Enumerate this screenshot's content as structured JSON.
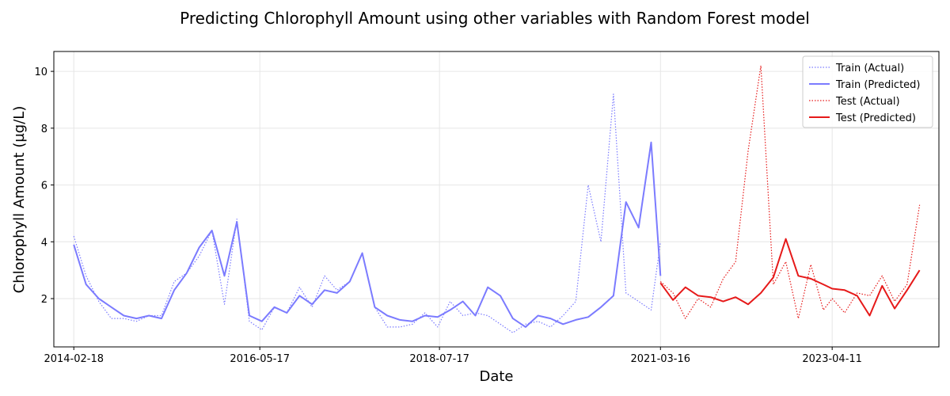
{
  "chart_data": {
    "type": "line",
    "title": "Predicting Chlorophyll Amount using other variables with Random Forest model",
    "xlabel": "Date",
    "ylabel": "Chlorophyll Amount (µg/L)",
    "ylim": [
      0.3,
      10.7
    ],
    "yticks": [
      2,
      4,
      6,
      8,
      10
    ],
    "xlim": [
      "2013-11-22",
      "2024-07-24"
    ],
    "xticks": [
      "2014-02-18",
      "2016-05-17",
      "2018-07-17",
      "2021-03-16",
      "2023-04-11"
    ],
    "grid": true,
    "legend_position": "top-right",
    "series": [
      {
        "name": "Train (Actual)",
        "color": "#7b7bff",
        "style": "dotted",
        "x": [
          "2014-02-18",
          "2014-04-13",
          "2014-06-08",
          "2014-08-02",
          "2014-09-26",
          "2014-11-21",
          "2015-01-15",
          "2015-03-11",
          "2015-05-06",
          "2015-06-30",
          "2015-08-24",
          "2015-10-19",
          "2015-12-13",
          "2016-02-06",
          "2016-04-01",
          "2016-05-26",
          "2016-07-20",
          "2016-09-13",
          "2016-11-08",
          "2017-01-02",
          "2017-02-26",
          "2017-04-22",
          "2017-06-17",
          "2017-08-11",
          "2017-10-05",
          "2017-11-29",
          "2018-01-24",
          "2018-03-20",
          "2018-05-14",
          "2018-07-09",
          "2018-09-02",
          "2018-10-28",
          "2018-12-22",
          "2019-02-15",
          "2019-04-11",
          "2019-06-05",
          "2019-07-31",
          "2019-09-24",
          "2019-11-18",
          "2020-01-12",
          "2020-03-08",
          "2020-05-02",
          "2020-06-27",
          "2020-08-21",
          "2020-10-15",
          "2020-12-10",
          "2021-02-03",
          "2021-03-16"
        ],
        "values": [
          4.2,
          2.8,
          1.9,
          1.3,
          1.3,
          1.2,
          1.4,
          1.4,
          2.6,
          2.9,
          3.5,
          4.4,
          1.8,
          4.8,
          1.2,
          0.9,
          1.7,
          1.5,
          2.4,
          1.7,
          2.8,
          2.3,
          2.6,
          3.6,
          1.7,
          1.0,
          1.0,
          1.1,
          1.5,
          1.0,
          1.9,
          1.4,
          1.5,
          1.4,
          1.1,
          0.8,
          1.1,
          1.2,
          1.0,
          1.4,
          1.9,
          6.0,
          4.0,
          9.2,
          2.2,
          1.9,
          1.6,
          4.0
        ]
      },
      {
        "name": "Train (Predicted)",
        "color": "#7b7bff",
        "style": "solid",
        "x": [
          "2014-02-18",
          "2014-04-13",
          "2014-06-08",
          "2014-08-02",
          "2014-09-26",
          "2014-11-21",
          "2015-01-15",
          "2015-03-11",
          "2015-05-06",
          "2015-06-30",
          "2015-08-24",
          "2015-10-19",
          "2015-12-13",
          "2016-02-06",
          "2016-04-01",
          "2016-05-26",
          "2016-07-20",
          "2016-09-13",
          "2016-11-08",
          "2017-01-02",
          "2017-02-26",
          "2017-04-22",
          "2017-06-17",
          "2017-08-11",
          "2017-10-05",
          "2017-11-29",
          "2018-01-24",
          "2018-03-20",
          "2018-05-14",
          "2018-07-09",
          "2018-09-02",
          "2018-10-28",
          "2018-12-22",
          "2019-02-15",
          "2019-04-11",
          "2019-06-05",
          "2019-07-31",
          "2019-09-24",
          "2019-11-18",
          "2020-01-12",
          "2020-03-08",
          "2020-05-02",
          "2020-06-27",
          "2020-08-21",
          "2020-10-15",
          "2020-12-10",
          "2021-02-03",
          "2021-03-16"
        ],
        "values": [
          3.9,
          2.5,
          2.0,
          1.7,
          1.4,
          1.3,
          1.4,
          1.3,
          2.3,
          2.9,
          3.8,
          4.4,
          2.8,
          4.7,
          1.4,
          1.2,
          1.7,
          1.5,
          2.1,
          1.8,
          2.3,
          2.2,
          2.6,
          3.6,
          1.7,
          1.4,
          1.25,
          1.2,
          1.4,
          1.35,
          1.6,
          1.9,
          1.4,
          2.4,
          2.1,
          1.3,
          1.0,
          1.4,
          1.3,
          1.1,
          1.25,
          1.35,
          1.7,
          2.1,
          5.4,
          4.5,
          7.5,
          2.8
        ]
      },
      {
        "name": "Test (Actual)",
        "color": "#e61919",
        "style": "dotted",
        "x": [
          "2021-03-16",
          "2021-05-10",
          "2021-07-04",
          "2021-08-29",
          "2021-10-23",
          "2021-12-17",
          "2022-02-10",
          "2022-04-06",
          "2022-06-01",
          "2022-07-26",
          "2022-09-19",
          "2022-11-13",
          "2023-01-07",
          "2023-03-03",
          "2023-04-11",
          "2023-06-05",
          "2023-07-30",
          "2023-09-23",
          "2023-11-17",
          "2024-01-11",
          "2024-03-06",
          "2024-04-30"
        ],
        "values": [
          2.6,
          2.2,
          1.3,
          2.0,
          1.7,
          2.7,
          3.3,
          7.2,
          10.2,
          2.5,
          3.3,
          1.3,
          3.2,
          1.6,
          2.0,
          1.5,
          2.2,
          2.1,
          2.8,
          1.9,
          2.5,
          5.3
        ]
      },
      {
        "name": "Test (Predicted)",
        "color": "#e61919",
        "style": "solid",
        "x": [
          "2021-03-16",
          "2021-05-10",
          "2021-07-04",
          "2021-08-29",
          "2021-10-23",
          "2021-12-17",
          "2022-02-10",
          "2022-04-06",
          "2022-06-01",
          "2022-07-26",
          "2022-09-19",
          "2022-11-13",
          "2023-01-07",
          "2023-03-03",
          "2023-04-11",
          "2023-06-05",
          "2023-07-30",
          "2023-09-23",
          "2023-11-17",
          "2024-01-11",
          "2024-03-06",
          "2024-04-30"
        ],
        "values": [
          2.55,
          1.95,
          2.4,
          2.1,
          2.05,
          1.9,
          2.05,
          1.8,
          2.2,
          2.75,
          4.1,
          2.8,
          2.7,
          2.5,
          2.35,
          2.3,
          2.1,
          1.4,
          2.45,
          1.65,
          2.3,
          3.0
        ]
      }
    ]
  }
}
